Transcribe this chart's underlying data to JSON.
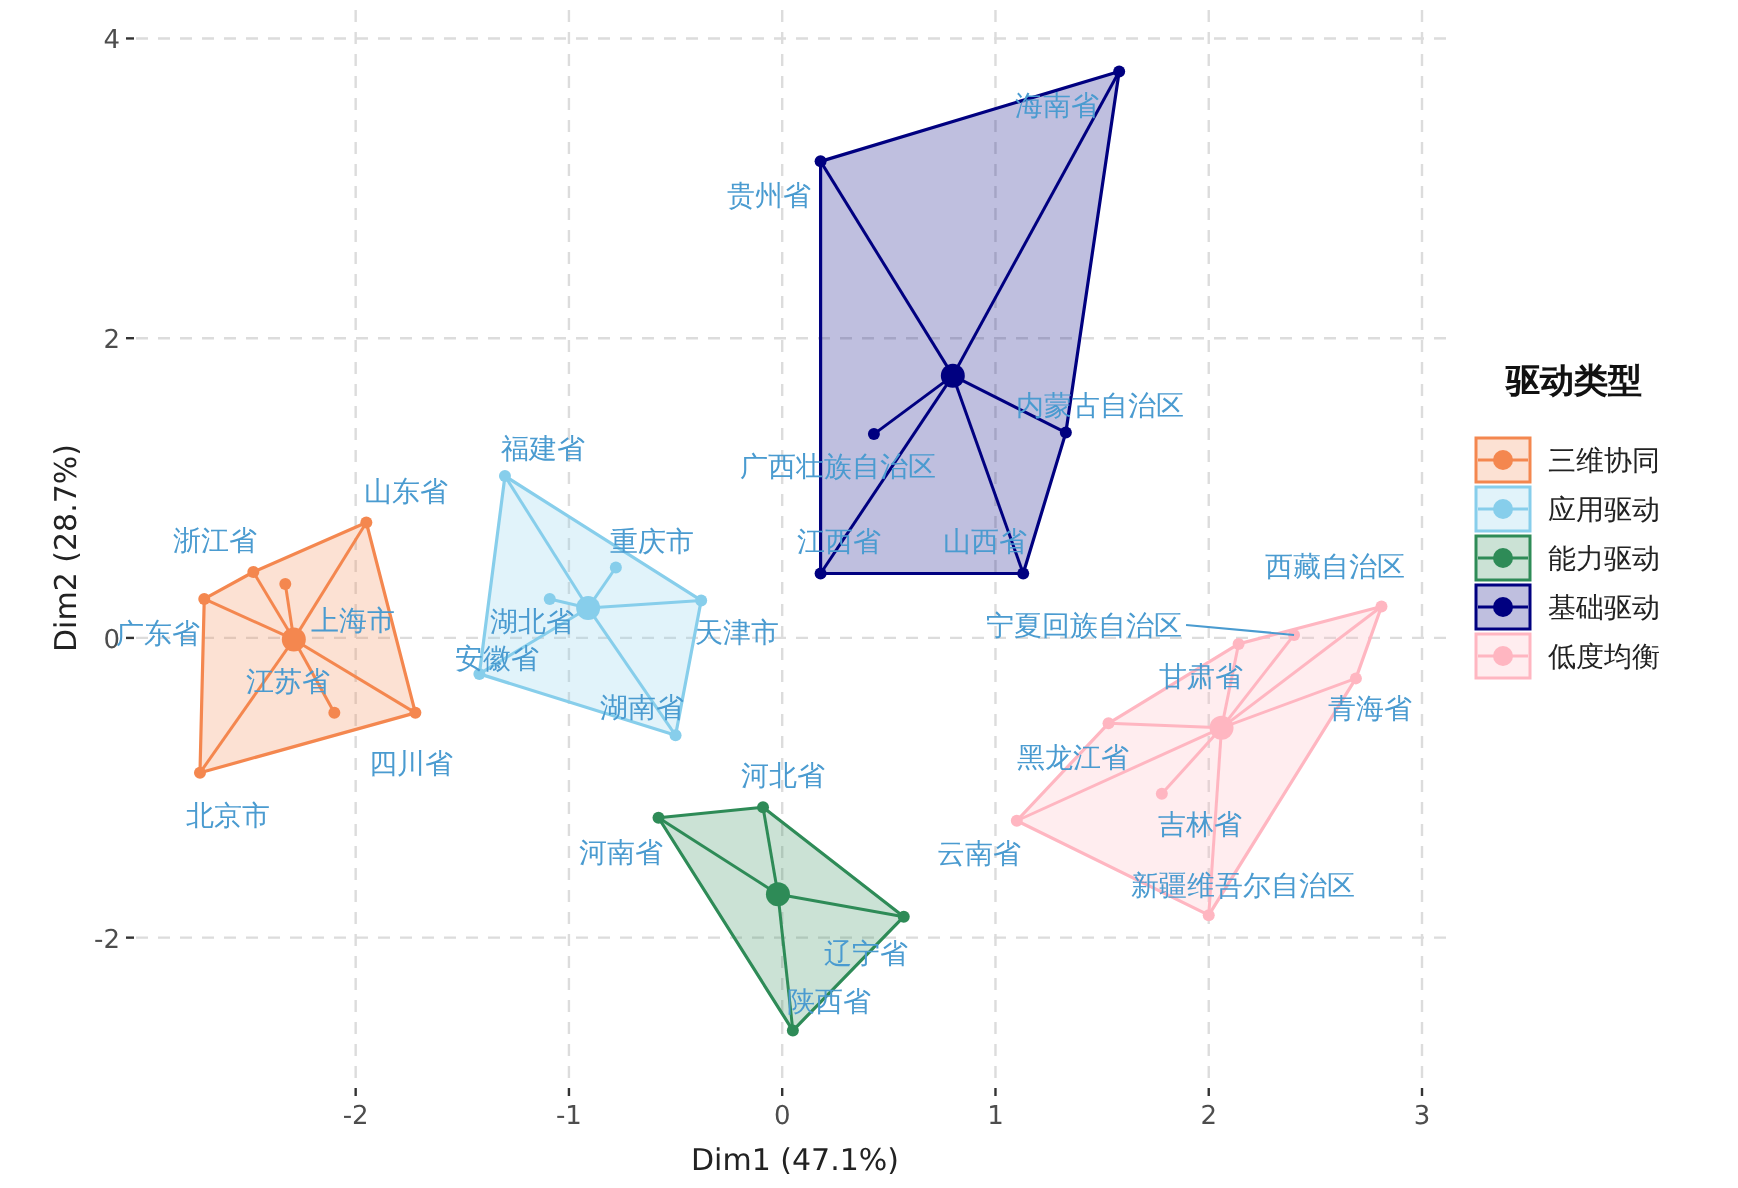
{
  "chart_data": {
    "type": "scatter",
    "xlabel": "Dim1 (47.1%)",
    "ylabel": "Dim2 (28.7%)",
    "legend_title": "驱动类型",
    "legend": "right",
    "grid": true,
    "marker": "circle",
    "xlim": [
      -3.03,
      3.15
    ],
    "ylim": [
      -2.99,
      4.19
    ],
    "xticks": [
      -2,
      -1,
      0,
      1,
      2,
      3
    ],
    "yticks": [
      -2,
      0,
      2,
      4
    ],
    "series": [
      {
        "name": "三维协同",
        "color": "#f4874f",
        "x": [
          -1.95,
          -2.48,
          -2.71,
          -2.33,
          -2.1,
          -1.72,
          -2.73
        ],
        "values": [
          0.77,
          0.44,
          0.26,
          0.36,
          -0.5,
          -0.5,
          -0.9
        ]
      },
      {
        "color": "#f4874f",
        "x": [
          -2.29
        ],
        "values": [
          -0.01
        ]
      },
      {
        "name": "应用驱动",
        "color": "#87ceeb",
        "x": [
          -1.3,
          -0.78,
          -1.09,
          -0.38,
          -1.42,
          -0.5
        ],
        "values": [
          1.08,
          0.47,
          0.26,
          0.25,
          -0.24,
          -0.65
        ]
      },
      {
        "color": "#87ceeb",
        "x": [
          -0.91
        ],
        "values": [
          0.2
        ]
      },
      {
        "name": "能力驱动",
        "color": "#2e8b57",
        "x": [
          -0.09,
          -0.58,
          0.57,
          0.05
        ],
        "values": [
          -1.13,
          -1.2,
          -1.86,
          -2.62
        ]
      },
      {
        "color": "#2e8b57",
        "x": [
          -0.02
        ],
        "values": [
          -1.71
        ]
      },
      {
        "name": "基础驱动",
        "color": "#000080",
        "x": [
          1.58,
          0.18,
          1.33,
          0.43,
          0.18,
          1.13
        ],
        "values": [
          3.78,
          3.18,
          1.37,
          1.36,
          0.43,
          0.43
        ]
      },
      {
        "color": "#000080",
        "x": [
          0.8
        ],
        "values": [
          1.75
        ]
      },
      {
        "name": "低度均衡",
        "color": "#ffb6c1",
        "x": [
          2.81,
          2.4,
          2.14,
          2.69,
          1.53,
          1.78,
          1.1,
          2.0
        ],
        "values": [
          0.21,
          0.02,
          -0.04,
          -0.27,
          -0.57,
          -1.04,
          -1.22,
          -1.85
        ]
      },
      {
        "color": "#ffb6c1",
        "x": [
          2.06
        ],
        "values": [
          -0.6
        ]
      }
    ],
    "annotations": [
      {
        "text": "山东省",
        "x": -1.95,
        "y": 0.77
      },
      {
        "text": "浙江省",
        "x": -2.48,
        "y": 0.44
      },
      {
        "text": "广东省",
        "x": -2.71,
        "y": 0.26
      },
      {
        "text": "上海市",
        "x": -2.33,
        "y": 0.36
      },
      {
        "text": "江苏省",
        "x": -2.1,
        "y": -0.5
      },
      {
        "text": "四川省",
        "x": -1.72,
        "y": -0.5
      },
      {
        "text": "北京市",
        "x": -2.73,
        "y": -0.9
      },
      {
        "text": "福建省",
        "x": -1.3,
        "y": 1.08
      },
      {
        "text": "重庆市",
        "x": -0.78,
        "y": 0.47
      },
      {
        "text": "湖北省",
        "x": -1.09,
        "y": 0.26
      },
      {
        "text": "天津市",
        "x": -0.38,
        "y": 0.25
      },
      {
        "text": "安徽省",
        "x": -1.42,
        "y": -0.24
      },
      {
        "text": "湖南省",
        "x": -0.5,
        "y": -0.65
      },
      {
        "text": "河北省",
        "x": -0.09,
        "y": -1.13
      },
      {
        "text": "河南省",
        "x": -0.58,
        "y": -1.2
      },
      {
        "text": "辽宁省",
        "x": 0.57,
        "y": -1.86
      },
      {
        "text": "陕西省",
        "x": 0.05,
        "y": -2.62
      },
      {
        "text": "海南省",
        "x": 1.58,
        "y": 3.78
      },
      {
        "text": "贵州省",
        "x": 0.18,
        "y": 3.18
      },
      {
        "text": "内蒙古自治区",
        "x": 1.33,
        "y": 1.37
      },
      {
        "text": "广西壮族自治区",
        "x": 0.43,
        "y": 1.36
      },
      {
        "text": "江西省",
        "x": 0.18,
        "y": 0.43
      },
      {
        "text": "山西省",
        "x": 1.13,
        "y": 0.43
      },
      {
        "text": "西藏自治区",
        "x": 2.81,
        "y": 0.21
      },
      {
        "text": "宁夏回族自治区",
        "x": 2.4,
        "y": 0.02
      },
      {
        "text": "甘肃省",
        "x": 2.14,
        "y": -0.04
      },
      {
        "text": "青海省",
        "x": 2.69,
        "y": -0.27
      },
      {
        "text": "黑龙江省",
        "x": 1.53,
        "y": -0.57
      },
      {
        "text": "吉林省",
        "x": 1.78,
        "y": -1.04
      },
      {
        "text": "云南省",
        "x": 1.1,
        "y": -1.22
      },
      {
        "text": "新疆维吾尔自治区",
        "x": 2.0,
        "y": -1.85
      }
    ]
  }
}
